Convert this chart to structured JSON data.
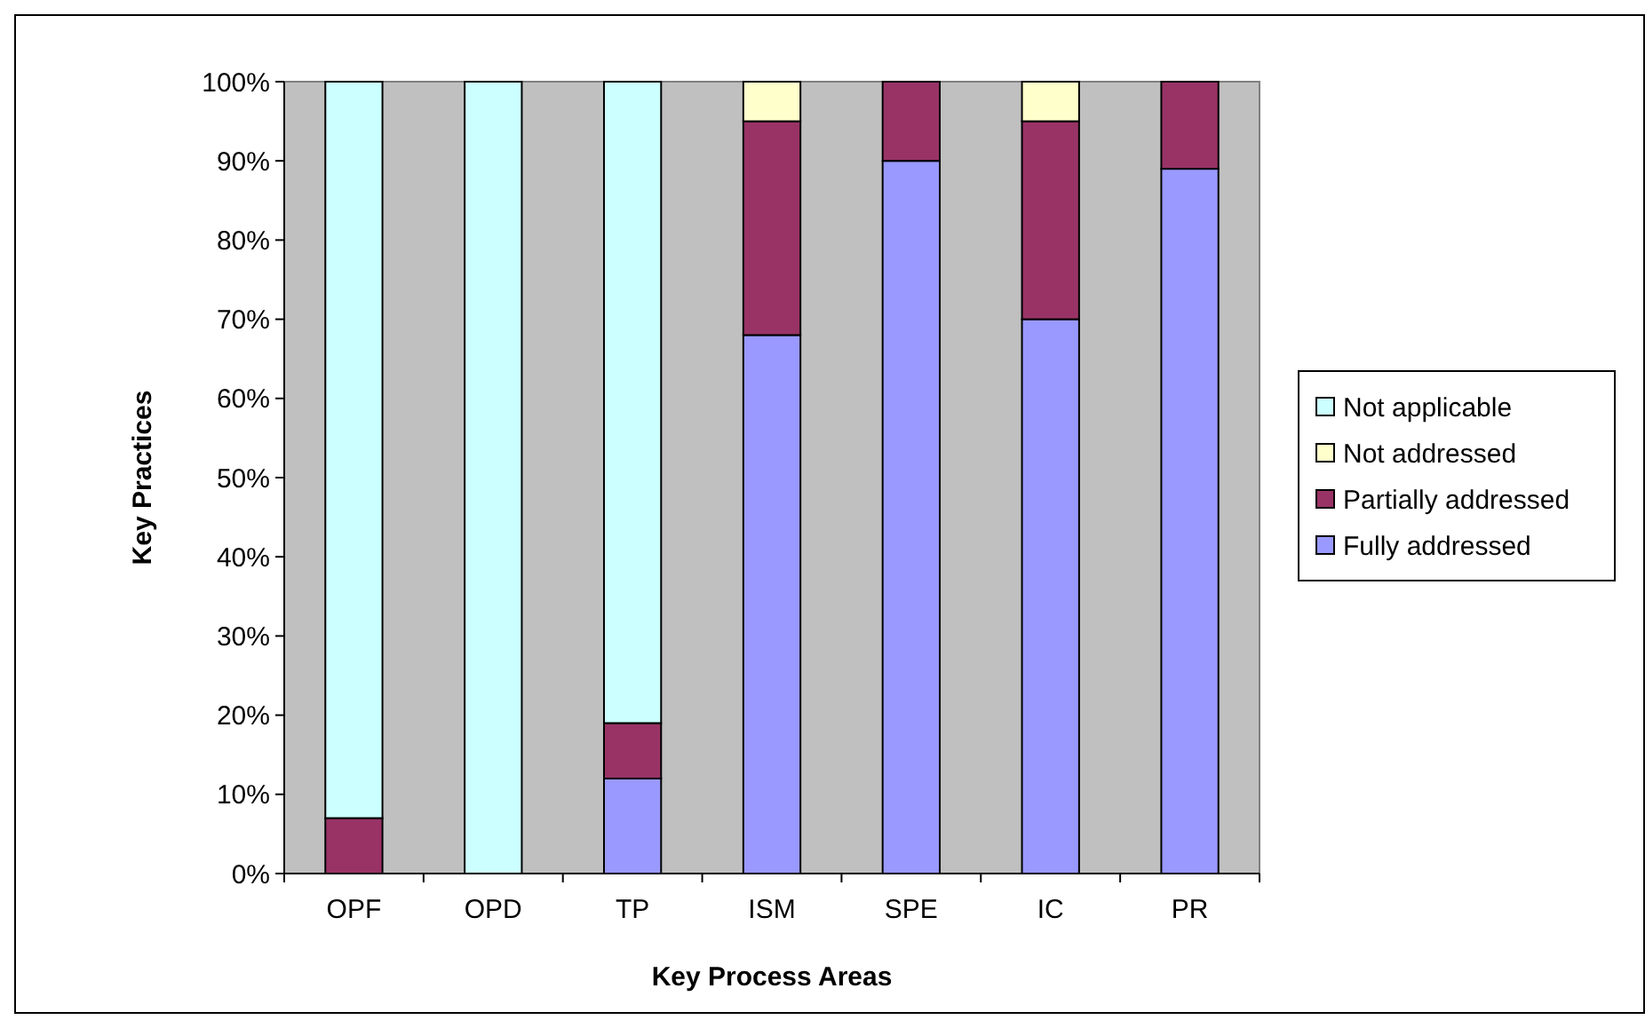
{
  "chart_data": {
    "type": "bar",
    "stacked": true,
    "xlabel": "Key Process Areas",
    "ylabel": "Key Practices",
    "categories": [
      "OPF",
      "OPD",
      "TP",
      "ISM",
      "SPE",
      "IC",
      "PR"
    ],
    "series": [
      {
        "name": "Fully addressed",
        "color": "#9999ff",
        "values": [
          0,
          0,
          12,
          68,
          90,
          70,
          89
        ]
      },
      {
        "name": "Partially addressed",
        "color": "#993366",
        "values": [
          7,
          0,
          7,
          27,
          10,
          25,
          11
        ]
      },
      {
        "name": "Not addressed",
        "color": "#ffffcc",
        "values": [
          0,
          0,
          0,
          5,
          0,
          5,
          0
        ]
      },
      {
        "name": "Not applicable",
        "color": "#ccffff",
        "values": [
          93,
          100,
          81,
          0,
          0,
          0,
          0
        ]
      }
    ],
    "ylim": [
      0,
      100
    ],
    "yticks": [
      {
        "value": 0,
        "label": "0%"
      },
      {
        "value": 10,
        "label": "10%"
      },
      {
        "value": 20,
        "label": "20%"
      },
      {
        "value": 30,
        "label": "30%"
      },
      {
        "value": 40,
        "label": "40%"
      },
      {
        "value": 50,
        "label": "50%"
      },
      {
        "value": 60,
        "label": "60%"
      },
      {
        "value": 70,
        "label": "70%"
      },
      {
        "value": 80,
        "label": "80%"
      },
      {
        "value": 90,
        "label": "90%"
      },
      {
        "value": 100,
        "label": "100%"
      }
    ],
    "grid": false,
    "legend": "right"
  }
}
